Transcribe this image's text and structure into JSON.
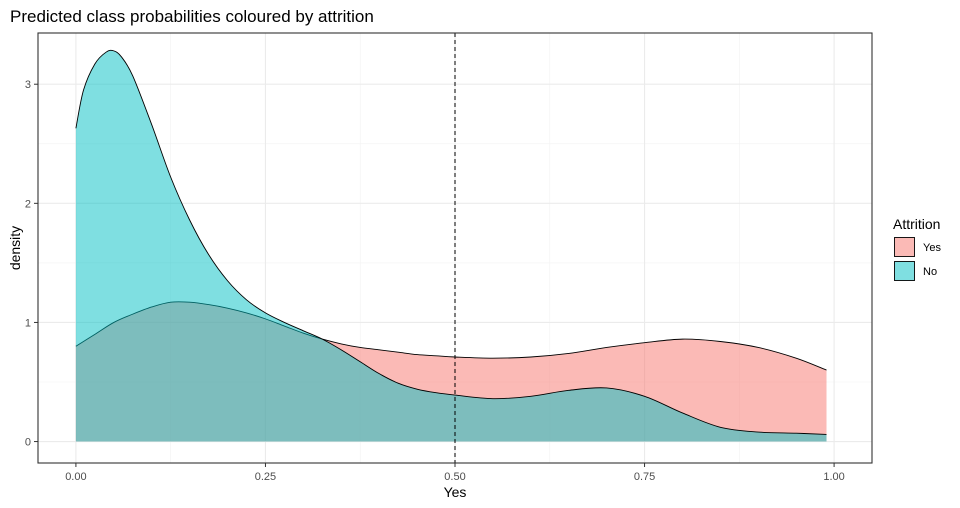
{
  "chart_data": {
    "type": "area",
    "title": "Predicted class probabilities coloured by attrition",
    "xlabel": "Yes",
    "ylabel": "density",
    "xlim": [
      -0.05,
      1.05
    ],
    "ylim": [
      -0.18,
      3.43
    ],
    "x_ticks": [
      0.0,
      0.25,
      0.5,
      0.75,
      1.0
    ],
    "x_tick_labels": [
      "0.00",
      "0.25",
      "0.50",
      "0.75",
      "1.00"
    ],
    "y_ticks": [
      0,
      1,
      2,
      3
    ],
    "y_tick_labels": [
      "0",
      "1",
      "2",
      "3"
    ],
    "grid": true,
    "vline": {
      "x": 0.5,
      "style": "dashed"
    },
    "legend": {
      "title": "Attrition",
      "position": "right",
      "entries": [
        {
          "label": "Yes",
          "color": "#f8766d"
        },
        {
          "label": "No",
          "color": "#00bfc4"
        }
      ]
    },
    "fill_opacity": 0.5,
    "series": [
      {
        "name": "Yes",
        "color": "#f8766d",
        "points": [
          [
            0.0,
            0.8
          ],
          [
            0.025,
            0.9
          ],
          [
            0.05,
            1.0
          ],
          [
            0.075,
            1.07
          ],
          [
            0.1,
            1.13
          ],
          [
            0.125,
            1.17
          ],
          [
            0.15,
            1.17
          ],
          [
            0.175,
            1.15
          ],
          [
            0.2,
            1.12
          ],
          [
            0.225,
            1.08
          ],
          [
            0.25,
            1.03
          ],
          [
            0.275,
            0.97
          ],
          [
            0.3,
            0.91
          ],
          [
            0.325,
            0.86
          ],
          [
            0.35,
            0.82
          ],
          [
            0.375,
            0.79
          ],
          [
            0.4,
            0.77
          ],
          [
            0.425,
            0.75
          ],
          [
            0.45,
            0.73
          ],
          [
            0.475,
            0.72
          ],
          [
            0.5,
            0.71
          ],
          [
            0.55,
            0.7
          ],
          [
            0.6,
            0.71
          ],
          [
            0.65,
            0.74
          ],
          [
            0.7,
            0.79
          ],
          [
            0.75,
            0.83
          ],
          [
            0.8,
            0.86
          ],
          [
            0.85,
            0.84
          ],
          [
            0.9,
            0.79
          ],
          [
            0.95,
            0.7
          ],
          [
            0.99,
            0.6
          ]
        ]
      },
      {
        "name": "No",
        "color": "#00bfc4",
        "points": [
          [
            0.0,
            2.63
          ],
          [
            0.01,
            2.95
          ],
          [
            0.025,
            3.17
          ],
          [
            0.04,
            3.27
          ],
          [
            0.05,
            3.28
          ],
          [
            0.06,
            3.23
          ],
          [
            0.075,
            3.07
          ],
          [
            0.1,
            2.66
          ],
          [
            0.125,
            2.22
          ],
          [
            0.15,
            1.86
          ],
          [
            0.175,
            1.57
          ],
          [
            0.2,
            1.35
          ],
          [
            0.225,
            1.19
          ],
          [
            0.25,
            1.08
          ],
          [
            0.275,
            1.0
          ],
          [
            0.3,
            0.93
          ],
          [
            0.325,
            0.86
          ],
          [
            0.35,
            0.77
          ],
          [
            0.375,
            0.67
          ],
          [
            0.4,
            0.57
          ],
          [
            0.425,
            0.49
          ],
          [
            0.45,
            0.44
          ],
          [
            0.475,
            0.41
          ],
          [
            0.5,
            0.39
          ],
          [
            0.55,
            0.36
          ],
          [
            0.6,
            0.38
          ],
          [
            0.65,
            0.43
          ],
          [
            0.7,
            0.45
          ],
          [
            0.75,
            0.38
          ],
          [
            0.8,
            0.24
          ],
          [
            0.85,
            0.12
          ],
          [
            0.9,
            0.08
          ],
          [
            0.95,
            0.07
          ],
          [
            0.99,
            0.06
          ]
        ]
      }
    ]
  }
}
